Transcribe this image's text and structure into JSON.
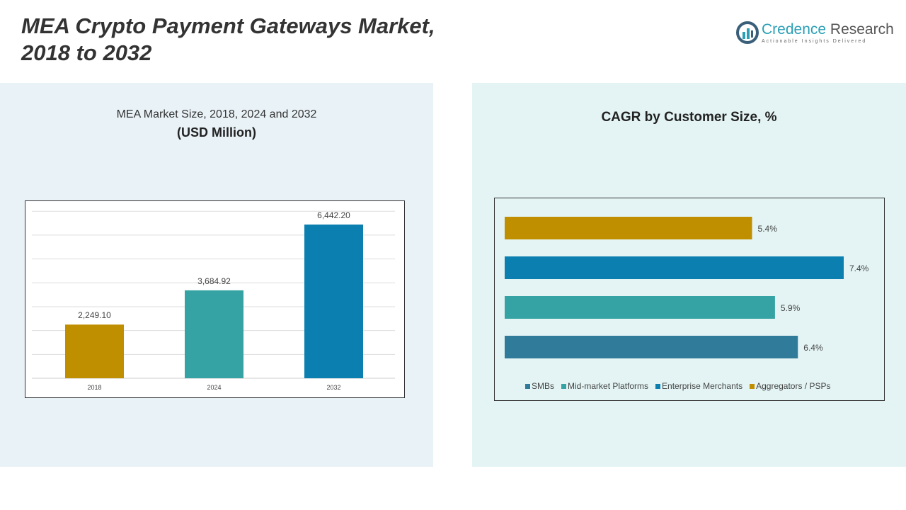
{
  "title": "MEA Crypto Payment Gateways Market, 2018 to 2032",
  "logo": {
    "name1": "Credence",
    "name2": "Research",
    "tagline": "Actionable Insights Delivered"
  },
  "chart_data": [
    {
      "type": "bar",
      "title": "MEA Market Size, 2018, 2024 and 2032",
      "subtitle": "(USD Million)",
      "categories": [
        "2018",
        "2024",
        "2032"
      ],
      "values": [
        2249.1,
        3684.92,
        6442.2
      ],
      "labels": [
        "2,249.10",
        "3,684.92",
        "6,442.20"
      ],
      "colors": [
        "#bf8f00",
        "#35a3a3",
        "#0a7fb0"
      ],
      "ylim": [
        0,
        7500
      ],
      "grid": true
    },
    {
      "type": "bar",
      "orientation": "horizontal",
      "title": "CAGR by Customer Size, %",
      "categories": [
        "Aggregators / PSPs",
        "Enterprise Merchants",
        "Mid-market Platforms",
        "SMBs"
      ],
      "values": [
        5.4,
        7.4,
        5.9,
        6.4
      ],
      "labels": [
        "5.4%",
        "7.4%",
        "5.9%",
        "6.4%"
      ],
      "colors": [
        "#bf8f00",
        "#0a7fb0",
        "#35a3a3",
        "#317b9a"
      ],
      "legend": {
        "position": "bottom",
        "entries": [
          "SMBs",
          "Mid-market Platforms",
          "Enterprise Merchants",
          "Aggregators / PSPs"
        ],
        "colors": [
          "#317b9a",
          "#35a3a3",
          "#0a7fb0",
          "#bf8f00"
        ]
      }
    }
  ]
}
